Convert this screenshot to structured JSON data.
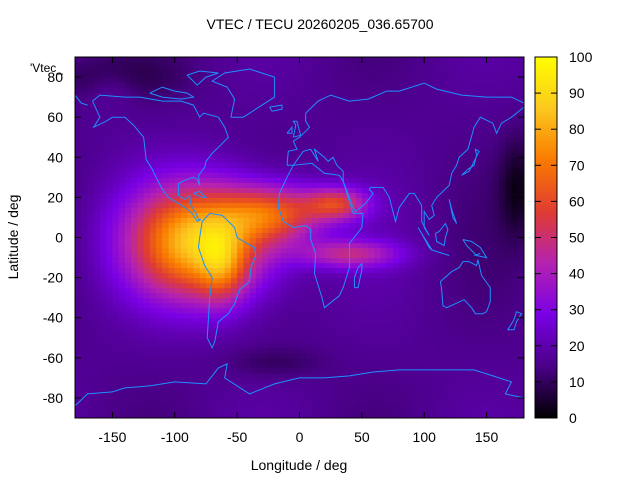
{
  "title": "VTEC / TECU 20260205_036.65700",
  "plot_key": "'Vtec_",
  "chart_data": {
    "type": "heatmap",
    "xlabel": "Longitude / deg",
    "ylabel": "Latitude / deg",
    "xlim": [
      -180,
      180
    ],
    "ylim": [
      -90,
      90
    ],
    "x_ticks": [
      -150,
      -100,
      -50,
      0,
      50,
      100,
      150
    ],
    "y_ticks": [
      -80,
      -60,
      -40,
      -20,
      0,
      20,
      40,
      60,
      80
    ],
    "colorbar": {
      "min": 0,
      "max": 100,
      "ticks": [
        0,
        10,
        20,
        30,
        40,
        50,
        60,
        70,
        80,
        90,
        100
      ]
    },
    "palette": [
      "#000000",
      "#4a0087",
      "#7a00e5",
      "#b522b0",
      "#e03c32",
      "#f97a00",
      "#fcc81e",
      "#ffff00"
    ],
    "coastline_color": "#1e90ff",
    "peak_lon": -70,
    "peak_lat": 0,
    "peak_value": 95
  }
}
